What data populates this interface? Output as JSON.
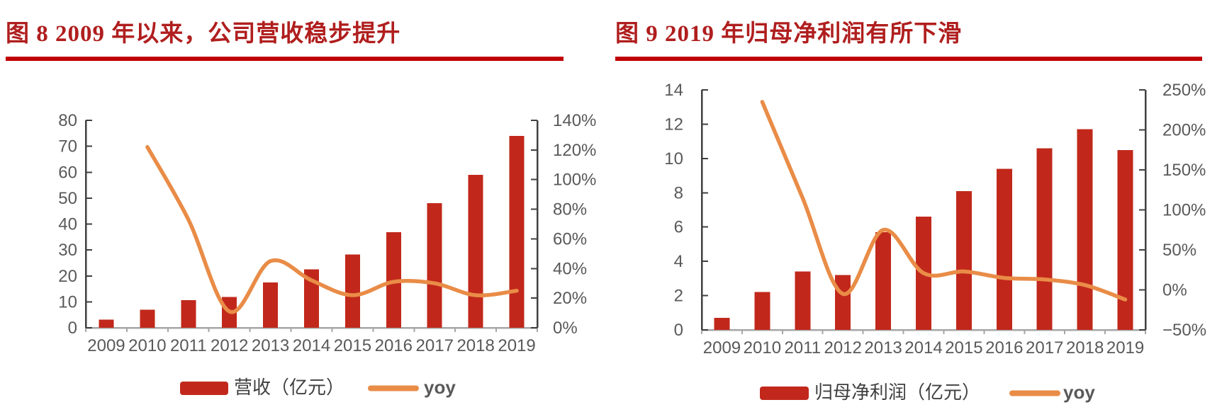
{
  "page": {
    "background": "#FFFFFF"
  },
  "colors": {
    "bar_red": "#C1281B",
    "line_orange": "#E98C47",
    "title_red": "#B01E1E",
    "rule_red": "#C00000",
    "axis_text": "#595959",
    "axis_dark": "#404040",
    "axis_gray": "#A6A6A6",
    "legend_text": "#3F3F3F"
  },
  "figures": [
    {
      "id": "fig8",
      "title": "图 8 2009 年以来，公司营收稳步提升",
      "legend": [
        {
          "label": "营收（亿元）",
          "marker": "bar"
        },
        {
          "label": "yoy",
          "marker": "line"
        }
      ],
      "chart_data": {
        "type": "bar+line",
        "title": "图 8 2009 年以来，公司营收稳步提升",
        "categories": [
          "2009",
          "2010",
          "2011",
          "2012",
          "2013",
          "2014",
          "2015",
          "2016",
          "2017",
          "2018",
          "2019"
        ],
        "series": [
          {
            "name": "营收（亿元）",
            "type": "bar",
            "axis": "left",
            "values": [
              3.2,
              7,
              10.7,
              11.9,
              17.5,
              22.5,
              28.2,
              36.8,
              48,
              59,
              74
            ]
          },
          {
            "name": "yoy",
            "type": "line",
            "axis": "right",
            "unit": "%",
            "values": [
              null,
              122,
              73,
              11,
              45,
              32,
              22,
              31,
              30,
              22,
              25
            ]
          }
        ],
        "left_axis": {
          "min": 0,
          "max": 80,
          "step": 10,
          "tick_labels": [
            "0",
            "10",
            "20",
            "30",
            "40",
            "50",
            "60",
            "70",
            "80"
          ]
        },
        "right_axis": {
          "min": 0,
          "max": 140,
          "step": 20,
          "tick_labels": [
            "0%",
            "20%",
            "40%",
            "60%",
            "80%",
            "100%",
            "120%",
            "140%"
          ]
        },
        "grid": false,
        "legend_position": "bottom"
      }
    },
    {
      "id": "fig9",
      "title": "图 9 2019 年归母净利润有所下滑",
      "legend": [
        {
          "label": "归母净利润（亿元）",
          "marker": "bar"
        },
        {
          "label": "yoy",
          "marker": "line"
        }
      ],
      "chart_data": {
        "type": "bar+line",
        "title": "图 9 2019 年归母净利润有所下滑",
        "categories": [
          "2009",
          "2010",
          "2011",
          "2012",
          "2013",
          "2014",
          "2015",
          "2016",
          "2017",
          "2018",
          "2019"
        ],
        "series": [
          {
            "name": "归母净利润（亿元）",
            "type": "bar",
            "axis": "left",
            "values": [
              0.7,
              2.2,
              3.4,
              3.2,
              5.7,
              6.6,
              8.1,
              9.4,
              10.6,
              11.7,
              10.5
            ]
          },
          {
            "name": "yoy",
            "type": "line",
            "axis": "right",
            "unit": "%",
            "values": [
              null,
              235,
              115,
              -5,
              75,
              21,
              23,
              15,
              13,
              6,
              -12
            ]
          }
        ],
        "left_axis": {
          "min": 0,
          "max": 14,
          "step": 2,
          "tick_labels": [
            "0",
            "2",
            "4",
            "6",
            "8",
            "10",
            "12",
            "14"
          ]
        },
        "right_axis": {
          "min": -50,
          "max": 250,
          "step": 50,
          "tick_labels": [
            "−50%",
            "0%",
            "50%",
            "100%",
            "150%",
            "200%",
            "250%"
          ]
        },
        "grid": false,
        "legend_position": "bottom"
      }
    }
  ]
}
